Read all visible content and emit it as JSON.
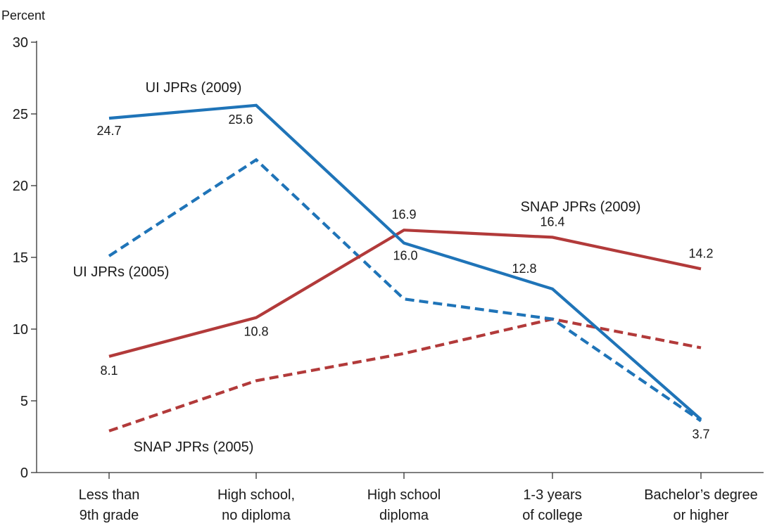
{
  "chart_data": {
    "type": "line",
    "ylabel": "Percent",
    "ylim": [
      0,
      30
    ],
    "yticks": [
      0,
      5,
      10,
      15,
      20,
      25,
      30
    ],
    "categories": [
      [
        "Less than",
        "9th grade"
      ],
      [
        "High school,",
        "no diploma"
      ],
      [
        "High school",
        "diploma"
      ],
      [
        "1-3 years",
        "of college"
      ],
      [
        "Bachelor’s degree",
        "or higher"
      ]
    ],
    "grid": false,
    "series": [
      {
        "name": "UI JPRs (2009)",
        "color": "#1f74b8",
        "dashed": false,
        "values": [
          24.7,
          25.6,
          16.0,
          12.8,
          3.7
        ],
        "labels": [
          "24.7",
          "25.6",
          "16.0",
          "12.8",
          "3.7"
        ]
      },
      {
        "name": "UI JPRs (2005)",
        "color": "#1f74b8",
        "dashed": true,
        "values": [
          15.1,
          21.8,
          12.1,
          10.7,
          3.6
        ],
        "labels": [
          null,
          null,
          null,
          null,
          null
        ]
      },
      {
        "name": "SNAP JPRs (2009)",
        "color": "#b23a3a",
        "dashed": false,
        "values": [
          8.1,
          10.8,
          16.9,
          16.4,
          14.2
        ],
        "labels": [
          "8.1",
          "10.8",
          "16.9",
          "16.4",
          "14.2"
        ]
      },
      {
        "name": "SNAP JPRs (2005)",
        "color": "#b23a3a",
        "dashed": true,
        "values": [
          2.9,
          6.4,
          8.3,
          10.7,
          8.7
        ],
        "labels": [
          null,
          null,
          null,
          null,
          null
        ]
      }
    ]
  }
}
